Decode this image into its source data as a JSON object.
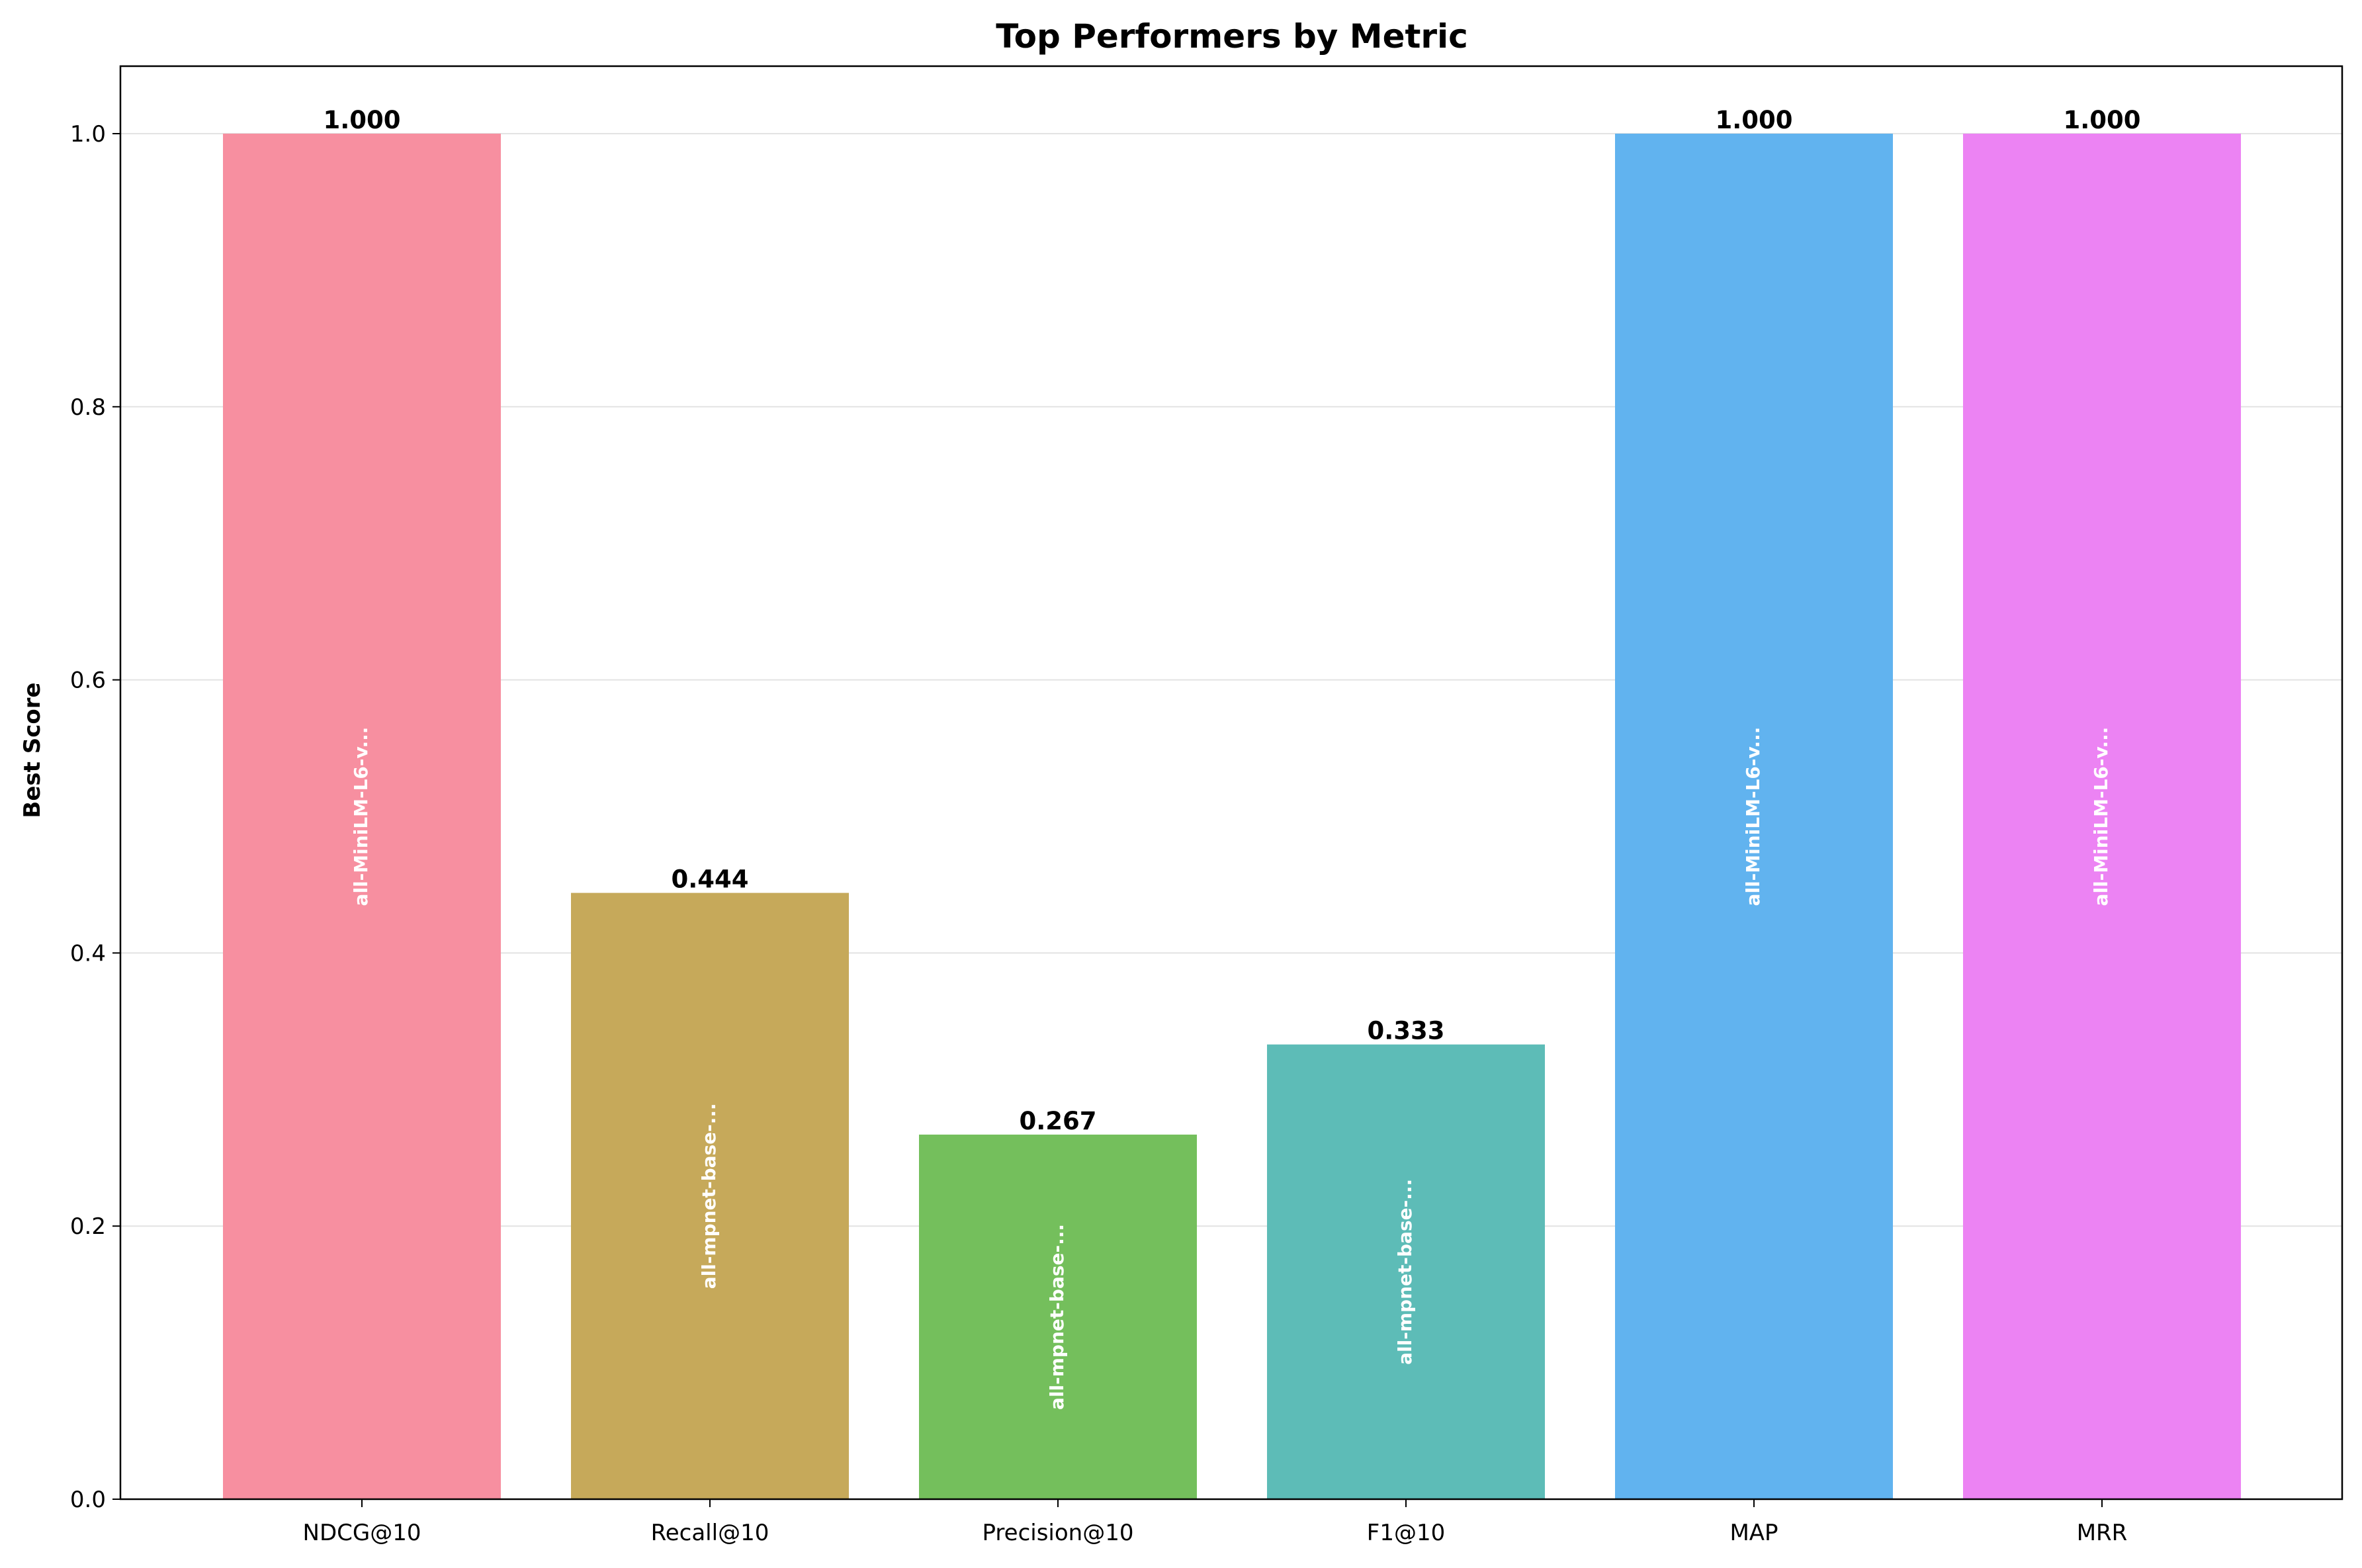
{
  "chart_data": {
    "type": "bar",
    "title": "Top Performers by Metric",
    "xlabel": "",
    "ylabel": "Best Score",
    "ylim": [
      0,
      1.05
    ],
    "yticks": [
      "0.0",
      "0.2",
      "0.4",
      "0.6",
      "0.8",
      "1.0"
    ],
    "grid": "y",
    "categories": [
      "NDCG@10",
      "Recall@10",
      "Precision@10",
      "F1@10",
      "MAP",
      "MRR"
    ],
    "values": [
      1.0,
      0.444,
      0.267,
      0.333,
      1.0,
      1.0
    ],
    "value_labels": [
      "1.000",
      "0.444",
      "0.267",
      "0.333",
      "1.000",
      "1.000"
    ],
    "model_labels": [
      "all-MiniLM-L6-v...",
      "all-mpnet-base-...",
      "all-mpnet-base-...",
      "all-mpnet-base-...",
      "all-MiniLM-L6-v...",
      "all-MiniLM-L6-v..."
    ],
    "colors": [
      "#f78fa0",
      "#c6a95a",
      "#74bf5c",
      "#5dbcb7",
      "#61b3ef",
      "#ec83f3"
    ]
  }
}
